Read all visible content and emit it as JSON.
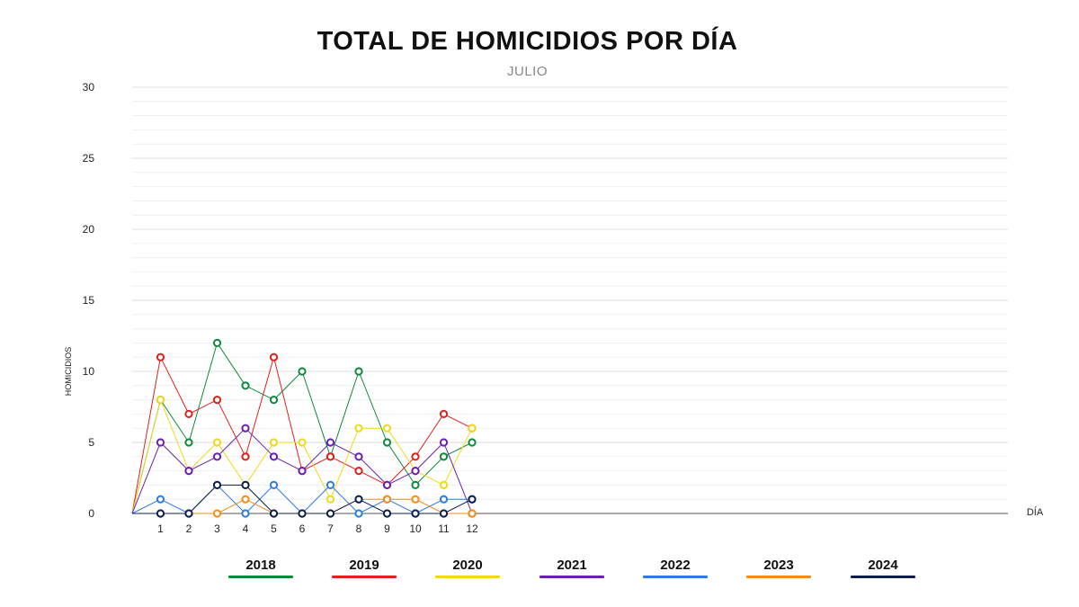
{
  "chart_data": {
    "type": "line",
    "title": "TOTAL DE HOMICIDIOS POR DÍA",
    "subtitle": "JULIO",
    "xlabel": "DÍA",
    "ylabel": "HOMICIDIOS",
    "ylim": [
      0,
      30
    ],
    "yticks": [
      0,
      5,
      10,
      15,
      20,
      25,
      30
    ],
    "minor_grid_step": 1,
    "grid": true,
    "legend_position": "bottom",
    "x": [
      1,
      2,
      3,
      4,
      5,
      6,
      7,
      8,
      9,
      10,
      11,
      12
    ],
    "series": [
      {
        "name": "2018",
        "color": "#0a8a3a",
        "values": [
          8,
          5,
          12,
          9,
          8,
          10,
          4,
          10,
          5,
          2,
          4,
          5
        ]
      },
      {
        "name": "2019",
        "color": "#e0201c",
        "values": [
          11,
          7,
          8,
          4,
          11,
          3,
          4,
          3,
          2,
          4,
          7,
          6
        ]
      },
      {
        "name": "2020",
        "color": "#f2d81a",
        "values": [
          8,
          3,
          5,
          2,
          5,
          5,
          1,
          6,
          6,
          3,
          2,
          6
        ]
      },
      {
        "name": "2021",
        "color": "#6a1fb0",
        "values": [
          5,
          3,
          4,
          6,
          4,
          3,
          5,
          4,
          2,
          3,
          5,
          0
        ]
      },
      {
        "name": "2022",
        "color": "#2c7be5",
        "values": [
          1,
          0,
          2,
          0,
          2,
          0,
          2,
          0,
          1,
          0,
          1,
          1
        ]
      },
      {
        "name": "2023",
        "color": "#f28c1b",
        "values": [
          0,
          0,
          0,
          1,
          0,
          0,
          0,
          1,
          1,
          1,
          0,
          0
        ]
      },
      {
        "name": "2024",
        "color": "#0b1f4d",
        "values": [
          0,
          0,
          2,
          2,
          0,
          0,
          0,
          1,
          0,
          0,
          0,
          1
        ]
      }
    ]
  }
}
